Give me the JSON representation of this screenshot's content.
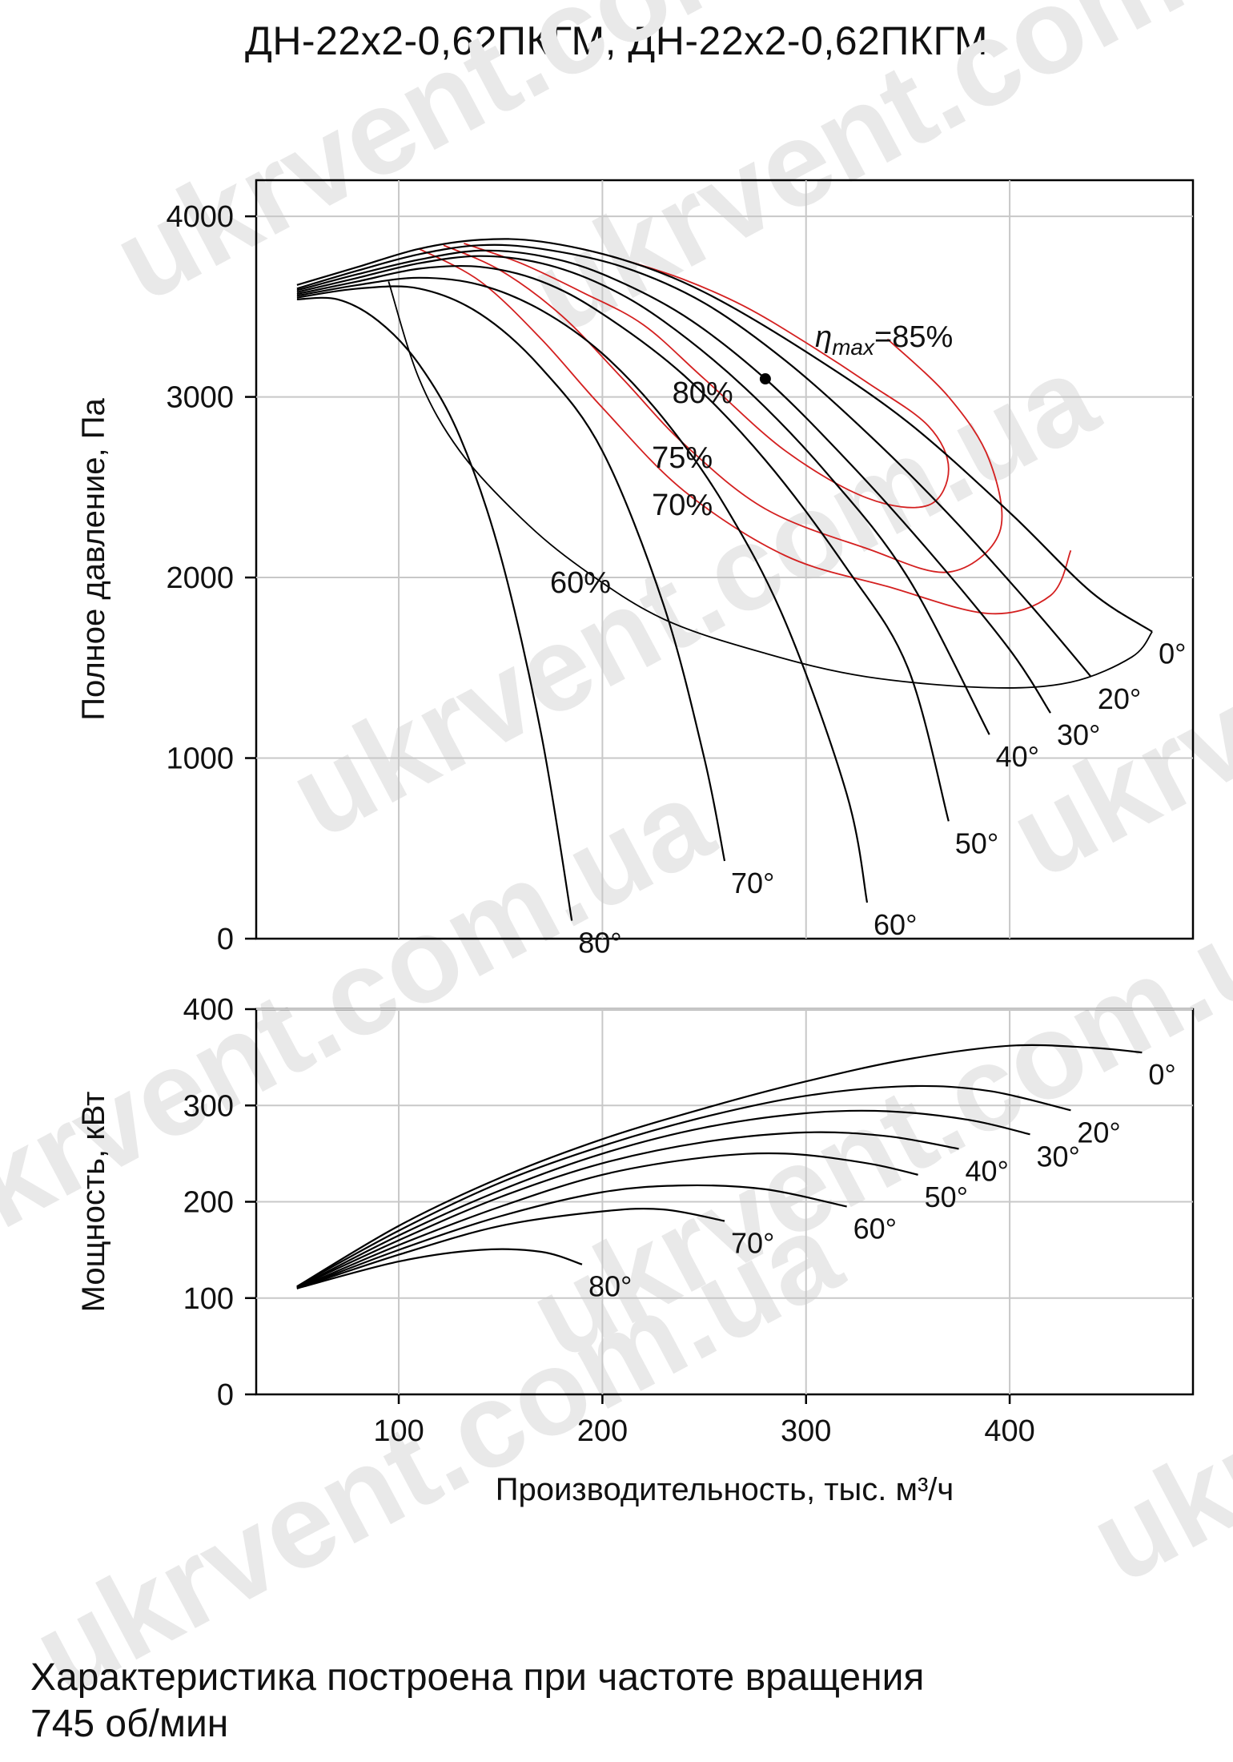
{
  "title": "ДН-22х2-0,62ПКГМ, ДН-22х2-0,62ПКГМ",
  "footnote": {
    "line1": "Характеристика построена при частоте вращения",
    "line2": "745 об/мин"
  },
  "watermark": "ukrvent.com.ua",
  "colors": {
    "grid": "#c8c8c8",
    "curve": "#000000",
    "efficiency": "#d42020",
    "efficiency_outer": "#000000"
  },
  "chart_data": [
    {
      "type": "line",
      "name": "pressure",
      "ylabel": "Полное давление, Па",
      "xlabel": "",
      "xlim": [
        30,
        490
      ],
      "ylim": [
        0,
        4200
      ],
      "xticks": [
        100,
        200,
        300,
        400
      ],
      "yticks": [
        0,
        1000,
        2000,
        3000,
        4000
      ],
      "grid": true,
      "eta_max_label": "η",
      "eta_max_sub": "max",
      "eta_max_value": "=85%",
      "eta_max_point": [
        280,
        3100
      ],
      "series": [
        {
          "label": "0°",
          "x": [
            50,
            80,
            110,
            140,
            170,
            210,
            250,
            300,
            350,
            400,
            440,
            470
          ],
          "y": [
            3620,
            3720,
            3820,
            3870,
            3860,
            3760,
            3580,
            3250,
            2860,
            2360,
            1920,
            1700
          ]
        },
        {
          "label": "20°",
          "x": [
            50,
            80,
            110,
            140,
            170,
            210,
            250,
            290,
            330,
            370,
            410,
            440
          ],
          "y": [
            3600,
            3700,
            3790,
            3840,
            3820,
            3720,
            3520,
            3200,
            2800,
            2350,
            1850,
            1450
          ]
        },
        {
          "label": "30°",
          "x": [
            50,
            80,
            110,
            140,
            170,
            200,
            240,
            280,
            320,
            360,
            400,
            420
          ],
          "y": [
            3590,
            3680,
            3760,
            3810,
            3780,
            3680,
            3450,
            3100,
            2650,
            2150,
            1600,
            1250
          ]
        },
        {
          "label": "40°",
          "x": [
            50,
            80,
            110,
            140,
            170,
            200,
            230,
            270,
            310,
            350,
            390
          ],
          "y": [
            3580,
            3660,
            3740,
            3780,
            3740,
            3620,
            3420,
            3050,
            2580,
            2000,
            1130
          ]
        },
        {
          "label": "50°",
          "x": [
            50,
            80,
            110,
            140,
            170,
            200,
            240,
            280,
            320,
            350,
            370
          ],
          "y": [
            3570,
            3640,
            3710,
            3720,
            3640,
            3460,
            3120,
            2650,
            2050,
            1500,
            650
          ]
        },
        {
          "label": "60°",
          "x": [
            50,
            80,
            110,
            140,
            170,
            200,
            230,
            260,
            290,
            320,
            330
          ],
          "y": [
            3560,
            3620,
            3660,
            3620,
            3480,
            3240,
            2880,
            2400,
            1750,
            800,
            200
          ]
        },
        {
          "label": "70°",
          "x": [
            50,
            80,
            110,
            140,
            170,
            200,
            230,
            250,
            260
          ],
          "y": [
            3550,
            3600,
            3600,
            3460,
            3160,
            2700,
            1850,
            1000,
            430
          ]
        },
        {
          "label": "80°",
          "x": [
            50,
            70,
            90,
            110,
            130,
            150,
            170,
            185
          ],
          "y": [
            3540,
            3540,
            3420,
            3180,
            2780,
            2120,
            1130,
            100
          ]
        }
      ],
      "efficiency_contours": [
        {
          "label": "80%",
          "color": "red",
          "x": [
            132,
            160,
            190,
            220,
            250,
            290,
            330,
            360,
            370,
            360,
            330,
            300,
            270,
            240,
            210,
            190
          ],
          "y": [
            3850,
            3740,
            3580,
            3400,
            3100,
            2700,
            2440,
            2400,
            2600,
            2840,
            3080,
            3300,
            3500,
            3650,
            3760,
            3820
          ]
        },
        {
          "label": "75%",
          "color": "red",
          "x": [
            122,
            150,
            180,
            210,
            240,
            280,
            330,
            370,
            395,
            390,
            370,
            340
          ],
          "y": [
            3840,
            3700,
            3450,
            3100,
            2740,
            2380,
            2160,
            2030,
            2250,
            2650,
            3000,
            3320
          ]
        },
        {
          "label": "70%",
          "color": "red",
          "x": [
            110,
            140,
            170,
            200,
            240,
            290,
            340,
            390,
            420,
            430
          ],
          "y": [
            3820,
            3640,
            3320,
            2940,
            2480,
            2120,
            1950,
            1800,
            1900,
            2150
          ]
        },
        {
          "label": "60%",
          "color": "black",
          "x": [
            95,
            110,
            130,
            160,
            190,
            230,
            280,
            330,
            390,
            430,
            460,
            470
          ],
          "y": [
            3640,
            3100,
            2700,
            2330,
            2050,
            1770,
            1580,
            1450,
            1390,
            1420,
            1560,
            1700
          ]
        }
      ]
    },
    {
      "type": "line",
      "name": "power",
      "ylabel": "Мощность, кВт",
      "xlabel": "Производительность, тыс. м³/ч",
      "xlim": [
        30,
        490
      ],
      "ylim": [
        0,
        400
      ],
      "xticks": [
        100,
        200,
        300,
        400
      ],
      "yticks": [
        0,
        100,
        200,
        300,
        400
      ],
      "grid": true,
      "series": [
        {
          "label": "0°",
          "x": [
            50,
            100,
            150,
            200,
            250,
            300,
            350,
            400,
            440,
            465
          ],
          "y": [
            112,
            175,
            225,
            265,
            297,
            325,
            348,
            362,
            360,
            355
          ]
        },
        {
          "label": "20°",
          "x": [
            50,
            100,
            150,
            200,
            250,
            300,
            350,
            390,
            430
          ],
          "y": [
            112,
            170,
            220,
            258,
            288,
            310,
            320,
            315,
            295
          ]
        },
        {
          "label": "30°",
          "x": [
            50,
            100,
            150,
            200,
            250,
            300,
            340,
            380,
            410
          ],
          "y": [
            111,
            165,
            212,
            250,
            277,
            292,
            294,
            285,
            270
          ]
        },
        {
          "label": "40°",
          "x": [
            50,
            100,
            150,
            200,
            250,
            300,
            340,
            375
          ],
          "y": [
            111,
            160,
            205,
            240,
            262,
            272,
            268,
            255
          ]
        },
        {
          "label": "50°",
          "x": [
            50,
            100,
            150,
            200,
            250,
            290,
            330,
            355
          ],
          "y": [
            110,
            155,
            195,
            228,
            246,
            250,
            240,
            228
          ]
        },
        {
          "label": "60°",
          "x": [
            50,
            100,
            150,
            200,
            240,
            280,
            320
          ],
          "y": [
            110,
            150,
            185,
            210,
            217,
            213,
            195
          ]
        },
        {
          "label": "70°",
          "x": [
            50,
            100,
            150,
            200,
            230,
            260
          ],
          "y": [
            110,
            145,
            175,
            190,
            192,
            180
          ]
        },
        {
          "label": "80°",
          "x": [
            50,
            100,
            140,
            170,
            190
          ],
          "y": [
            110,
            138,
            150,
            148,
            135
          ]
        }
      ]
    }
  ]
}
